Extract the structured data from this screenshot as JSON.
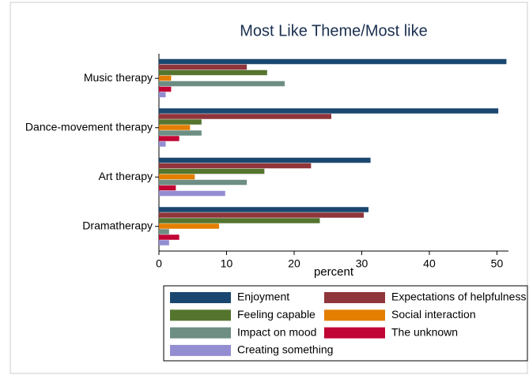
{
  "chart_data": {
    "type": "bar",
    "orientation": "horizontal",
    "title": "Most Like Theme/Most like",
    "x_label": "percent",
    "categories": [
      "Music therapy",
      "Dance-movement therapy",
      "Art therapy",
      "Dramatherapy"
    ],
    "series": [
      {
        "name": "Enjoyment",
        "color": "#1a476f",
        "values": [
          51.4,
          50.2,
          31.3,
          31.0
        ]
      },
      {
        "name": "Expectations of helpfulness",
        "color": "#90353b",
        "values": [
          13.0,
          25.5,
          22.5,
          30.3
        ]
      },
      {
        "name": "Feeling capable",
        "color": "#55752f",
        "values": [
          16.0,
          6.3,
          15.6,
          23.8
        ]
      },
      {
        "name": "Social interaction",
        "color": "#e37e00",
        "values": [
          1.8,
          4.6,
          5.3,
          8.9
        ]
      },
      {
        "name": "Impact on mood",
        "color": "#6e8e84",
        "values": [
          18.6,
          6.3,
          13.0,
          1.5
        ]
      },
      {
        "name": "The unknown",
        "color": "#c10534",
        "values": [
          1.8,
          3.0,
          2.5,
          3.0
        ]
      },
      {
        "name": "Creating something",
        "color": "#938dd2",
        "values": [
          1.0,
          1.0,
          9.8,
          1.5
        ]
      }
    ],
    "xlim": [
      0,
      51.7
    ],
    "xticks": [
      0,
      10,
      20,
      30,
      40,
      50
    ],
    "grid": false,
    "legend_position": "bottom"
  }
}
